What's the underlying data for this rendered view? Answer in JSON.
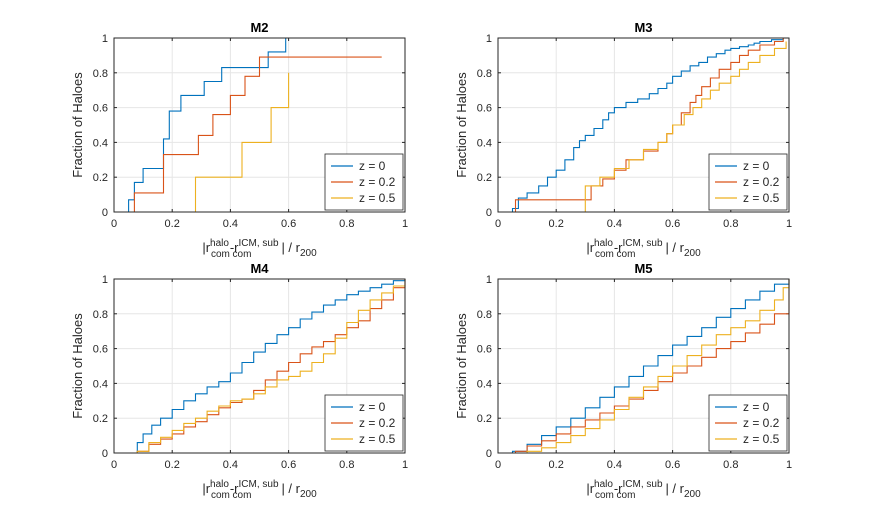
{
  "figure": {
    "colors": {
      "z0": "#0072BD",
      "z02": "#D95319",
      "z05": "#EDB120",
      "grid": "#e6e6e6",
      "axis": "#262626"
    },
    "x_label_parts": {
      "r": "|r",
      "halo": "halo",
      "com": "com",
      "minus_r": "-r",
      "icm": "ICM, sub",
      "divider": "| / r",
      "r200": "200"
    }
  },
  "chart_data": [
    {
      "type": "line",
      "title": "M2",
      "ylabel": "Fraction of Haloes",
      "xlim": [
        0,
        1
      ],
      "ylim": [
        0,
        1
      ],
      "xticks": [
        "0",
        "0.2",
        "0.4",
        "0.6",
        "0.8",
        "1"
      ],
      "yticks": [
        "0",
        "0.2",
        "0.4",
        "0.6",
        "0.8",
        "1"
      ],
      "legend": [
        "z = 0",
        "z = 0.2",
        "z = 0.5"
      ],
      "series": [
        {
          "name": "z = 0",
          "x": [
            0.05,
            0.07,
            0.1,
            0.17,
            0.19,
            0.23,
            0.31,
            0.37,
            0.53,
            0.59,
            0.61,
            0.63
          ],
          "y": [
            0.07,
            0.17,
            0.25,
            0.42,
            0.58,
            0.67,
            0.75,
            0.83,
            0.92,
            1.0,
            1.0,
            1.0
          ]
        },
        {
          "name": "z = 0.2",
          "x": [
            0.07,
            0.09,
            0.17,
            0.2,
            0.29,
            0.34,
            0.4,
            0.45,
            0.5,
            0.55,
            0.67,
            0.92
          ],
          "y": [
            0.11,
            0.11,
            0.33,
            0.33,
            0.44,
            0.56,
            0.67,
            0.78,
            0.89,
            0.89,
            0.89,
            0.89
          ]
        },
        {
          "name": "z = 0.5",
          "x": [
            0.28,
            0.44,
            0.54,
            0.6
          ],
          "y": [
            0.2,
            0.4,
            0.6,
            0.8
          ]
        }
      ]
    },
    {
      "type": "line",
      "title": "M3",
      "ylabel": "Fraction of Haloes",
      "xlim": [
        0,
        1
      ],
      "ylim": [
        0,
        1
      ],
      "xticks": [
        "0",
        "0.2",
        "0.4",
        "0.6",
        "0.8",
        "1"
      ],
      "yticks": [
        "0",
        "0.2",
        "0.4",
        "0.6",
        "0.8",
        "1"
      ],
      "legend": [
        "z = 0",
        "z = 0.2",
        "z = 0.5"
      ],
      "series": [
        {
          "name": "z = 0",
          "x": [
            0.05,
            0.07,
            0.1,
            0.14,
            0.17,
            0.2,
            0.23,
            0.26,
            0.28,
            0.3,
            0.33,
            0.36,
            0.38,
            0.4,
            0.44,
            0.48,
            0.52,
            0.55,
            0.58,
            0.6,
            0.63,
            0.66,
            0.69,
            0.72,
            0.75,
            0.78,
            0.8,
            0.83,
            0.86,
            0.88,
            0.9,
            0.94,
            0.98
          ],
          "y": [
            0.02,
            0.08,
            0.11,
            0.15,
            0.2,
            0.24,
            0.3,
            0.37,
            0.41,
            0.44,
            0.48,
            0.53,
            0.57,
            0.6,
            0.63,
            0.65,
            0.68,
            0.71,
            0.74,
            0.78,
            0.81,
            0.84,
            0.86,
            0.89,
            0.91,
            0.93,
            0.94,
            0.95,
            0.96,
            0.97,
            0.98,
            0.99,
            1.0
          ]
        },
        {
          "name": "z = 0.2",
          "x": [
            0.06,
            0.15,
            0.22,
            0.29,
            0.32,
            0.36,
            0.4,
            0.44,
            0.5,
            0.55,
            0.58,
            0.6,
            0.63,
            0.66,
            0.68,
            0.7,
            0.73,
            0.76,
            0.8,
            0.83,
            0.86,
            0.9,
            0.95,
            0.98
          ],
          "y": [
            0.07,
            0.07,
            0.07,
            0.07,
            0.15,
            0.19,
            0.24,
            0.3,
            0.35,
            0.4,
            0.45,
            0.5,
            0.57,
            0.63,
            0.67,
            0.72,
            0.77,
            0.82,
            0.86,
            0.9,
            0.93,
            0.96,
            0.98,
            1.0
          ]
        },
        {
          "name": "z = 0.5",
          "x": [
            0.3,
            0.35,
            0.4,
            0.45,
            0.5,
            0.55,
            0.58,
            0.6,
            0.64,
            0.67,
            0.7,
            0.73,
            0.76,
            0.8,
            0.83,
            0.86,
            0.9,
            0.95,
            0.99
          ],
          "y": [
            0.15,
            0.2,
            0.25,
            0.3,
            0.36,
            0.4,
            0.45,
            0.5,
            0.56,
            0.6,
            0.65,
            0.7,
            0.74,
            0.78,
            0.82,
            0.86,
            0.9,
            0.94,
            0.98
          ]
        }
      ]
    },
    {
      "type": "line",
      "title": "M4",
      "ylabel": "Fraction of Haloes",
      "xlim": [
        0,
        1
      ],
      "ylim": [
        0,
        1
      ],
      "xticks": [
        "0",
        "0.2",
        "0.4",
        "0.6",
        "0.8",
        "1"
      ],
      "yticks": [
        "0",
        "0.2",
        "0.4",
        "0.6",
        "0.8",
        "1"
      ],
      "legend": [
        "z = 0",
        "z = 0.2",
        "z = 0.5"
      ],
      "series": [
        {
          "name": "z = 0",
          "x": [
            0.05,
            0.08,
            0.1,
            0.13,
            0.16,
            0.2,
            0.24,
            0.28,
            0.32,
            0.36,
            0.4,
            0.44,
            0.48,
            0.52,
            0.56,
            0.6,
            0.64,
            0.68,
            0.72,
            0.76,
            0.8,
            0.84,
            0.88,
            0.92,
            0.96,
            1.0
          ],
          "y": [
            0.0,
            0.06,
            0.11,
            0.16,
            0.2,
            0.25,
            0.3,
            0.34,
            0.38,
            0.41,
            0.46,
            0.52,
            0.58,
            0.63,
            0.68,
            0.72,
            0.77,
            0.81,
            0.85,
            0.88,
            0.91,
            0.93,
            0.95,
            0.97,
            0.99,
            1.0
          ]
        },
        {
          "name": "z = 0.2",
          "x": [
            0.08,
            0.12,
            0.16,
            0.2,
            0.24,
            0.28,
            0.32,
            0.36,
            0.4,
            0.44,
            0.48,
            0.52,
            0.56,
            0.6,
            0.64,
            0.68,
            0.72,
            0.76,
            0.8,
            0.84,
            0.88,
            0.92,
            0.96,
            1.0
          ],
          "y": [
            0.01,
            0.05,
            0.08,
            0.11,
            0.15,
            0.18,
            0.22,
            0.26,
            0.29,
            0.31,
            0.36,
            0.42,
            0.47,
            0.52,
            0.57,
            0.61,
            0.64,
            0.68,
            0.72,
            0.76,
            0.83,
            0.88,
            0.95,
            1.0
          ]
        },
        {
          "name": "z = 0.5",
          "x": [
            0.08,
            0.12,
            0.16,
            0.2,
            0.24,
            0.28,
            0.32,
            0.36,
            0.4,
            0.44,
            0.48,
            0.52,
            0.56,
            0.6,
            0.64,
            0.68,
            0.72,
            0.76,
            0.8,
            0.84,
            0.88,
            0.92,
            0.96,
            1.0
          ],
          "y": [
            0.01,
            0.06,
            0.09,
            0.13,
            0.17,
            0.2,
            0.24,
            0.27,
            0.3,
            0.31,
            0.34,
            0.38,
            0.42,
            0.44,
            0.47,
            0.52,
            0.57,
            0.66,
            0.75,
            0.82,
            0.88,
            0.92,
            0.96,
            1.0
          ]
        }
      ]
    },
    {
      "type": "line",
      "title": "M5",
      "ylabel": "Fraction of Haloes",
      "xlim": [
        0,
        1
      ],
      "ylim": [
        0,
        1
      ],
      "xticks": [
        "0",
        "0.2",
        "0.4",
        "0.6",
        "0.8",
        "1"
      ],
      "yticks": [
        "0",
        "0.2",
        "0.4",
        "0.6",
        "0.8",
        "1"
      ],
      "legend": [
        "z = 0",
        "z = 0.2",
        "z = 0.5"
      ],
      "series": [
        {
          "name": "z = 0",
          "x": [
            0.05,
            0.1,
            0.15,
            0.2,
            0.25,
            0.3,
            0.35,
            0.4,
            0.45,
            0.5,
            0.55,
            0.6,
            0.65,
            0.7,
            0.75,
            0.8,
            0.85,
            0.9,
            0.95,
            1.0
          ],
          "y": [
            0.01,
            0.05,
            0.1,
            0.15,
            0.2,
            0.26,
            0.32,
            0.38,
            0.44,
            0.5,
            0.56,
            0.62,
            0.67,
            0.72,
            0.78,
            0.83,
            0.88,
            0.93,
            0.97,
            1.0
          ]
        },
        {
          "name": "z = 0.2",
          "x": [
            0.06,
            0.1,
            0.15,
            0.2,
            0.25,
            0.3,
            0.35,
            0.4,
            0.45,
            0.5,
            0.55,
            0.6,
            0.65,
            0.7,
            0.75,
            0.8,
            0.85,
            0.9,
            0.95,
            1.0
          ],
          "y": [
            0.01,
            0.04,
            0.07,
            0.11,
            0.15,
            0.19,
            0.23,
            0.27,
            0.31,
            0.36,
            0.41,
            0.46,
            0.5,
            0.55,
            0.6,
            0.64,
            0.69,
            0.74,
            0.8,
            1.0
          ]
        },
        {
          "name": "z = 0.5",
          "x": [
            0.1,
            0.15,
            0.2,
            0.25,
            0.3,
            0.35,
            0.4,
            0.45,
            0.5,
            0.55,
            0.6,
            0.65,
            0.7,
            0.75,
            0.8,
            0.85,
            0.9,
            0.95,
            0.98,
            1.0
          ],
          "y": [
            0.01,
            0.03,
            0.06,
            0.1,
            0.14,
            0.19,
            0.25,
            0.32,
            0.38,
            0.44,
            0.5,
            0.56,
            0.62,
            0.68,
            0.72,
            0.76,
            0.82,
            0.88,
            0.95,
            1.0
          ]
        }
      ]
    }
  ]
}
